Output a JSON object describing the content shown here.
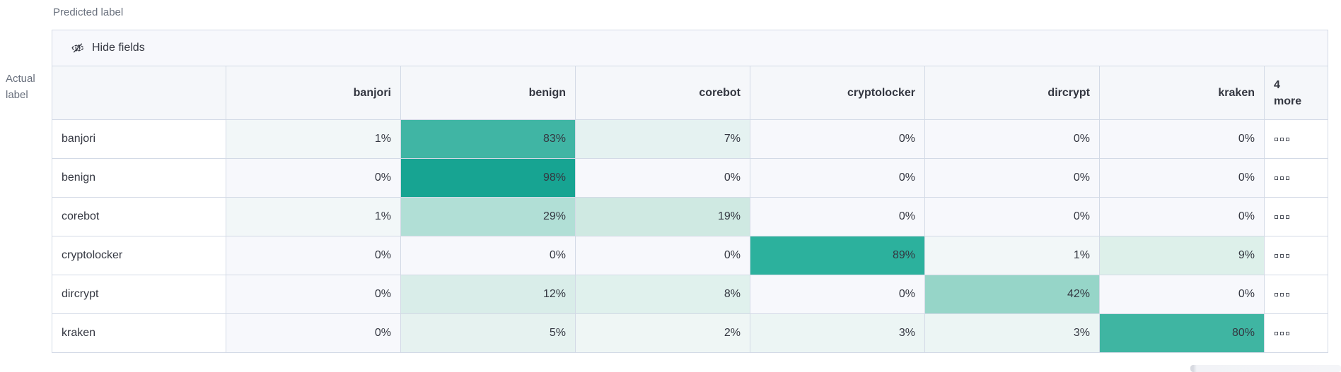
{
  "toolbar": {
    "hide_fields_label": "Hide fields"
  },
  "chart_data": {
    "type": "heatmap",
    "x_axis_label": "Predicted label",
    "y_axis_label_lines": [
      "Actual",
      "label"
    ],
    "columns": [
      "banjori",
      "benign",
      "corebot",
      "cryptolocker",
      "dircrypt",
      "kraken"
    ],
    "more_columns": {
      "count": "4",
      "label": "more"
    },
    "rows": [
      {
        "label": "banjori",
        "values": [
          1,
          83,
          7,
          0,
          0,
          0
        ]
      },
      {
        "label": "benign",
        "values": [
          0,
          98,
          0,
          0,
          0,
          0
        ]
      },
      {
        "label": "corebot",
        "values": [
          1,
          29,
          19,
          0,
          0,
          0
        ]
      },
      {
        "label": "cryptolocker",
        "values": [
          0,
          0,
          0,
          89,
          1,
          9
        ]
      },
      {
        "label": "dircrypt",
        "values": [
          0,
          12,
          8,
          0,
          42,
          0
        ]
      },
      {
        "label": "kraken",
        "values": [
          0,
          5,
          2,
          3,
          3,
          80
        ]
      }
    ],
    "value_suffix": "%",
    "heat_colors": {
      "0": "#f7f8fc",
      "1": "#f2f7f8",
      "2": "#eff6f5",
      "3": "#ecf5f4",
      "5": "#e6f2f0",
      "7": "#e5f2f1",
      "8": "#e0f1ed",
      "9": "#ddf0ea",
      "12": "#d9ede9",
      "19": "#cfe9e2",
      "29": "#b1dfd6",
      "42": "#96d5c8",
      "80": "#3fb5a2",
      "83": "#40b5a4",
      "89": "#2cb19d",
      "98": "#17a492"
    },
    "legend_position": "none",
    "grid_border_color": "#d3dae6",
    "header_bg_color": "#f5f7fa"
  }
}
